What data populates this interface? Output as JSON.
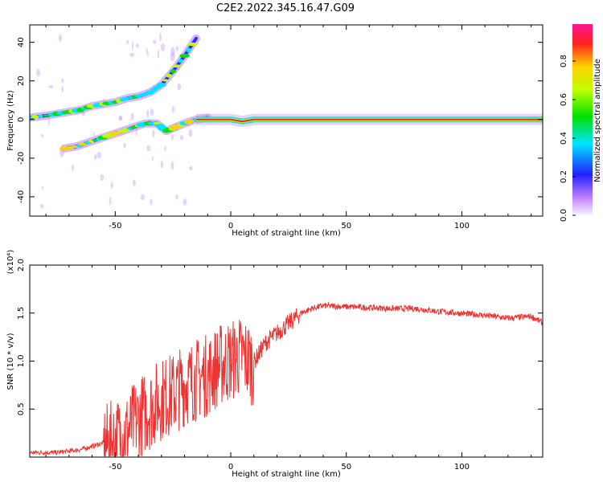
{
  "title": "C2E2.2022.345.16.47.G09",
  "chart_data": [
    {
      "type": "heatmap",
      "xlabel": "Height of straight line (km)",
      "ylabel": "Frequency (Hz)",
      "xlim": [
        -87,
        135
      ],
      "ylim": [
        -50,
        49
      ],
      "x_ticks": [
        -50,
        0,
        50,
        100
      ],
      "y_ticks": [
        -40,
        -20,
        0,
        20,
        40
      ],
      "colorbar": {
        "label": "Normalized spectral amplitude",
        "range": [
          0.0,
          1.0
        ],
        "ticks": [
          "0.0",
          "0.2",
          "0.4",
          "0.6",
          "0.8"
        ]
      },
      "colormap": [
        "#ffffff",
        "#8a2be2",
        "#2020ff",
        "#00e5ff",
        "#00e000",
        "#c0ff00",
        "#ffd000",
        "#ff2020",
        "#ff1493"
      ],
      "traces": [
        {
          "name": "upper-branch",
          "points": [
            [
              -87,
              1
            ],
            [
              -80,
              2
            ],
            [
              -75,
              3
            ],
            [
              -70,
              4
            ],
            [
              -65,
              5
            ],
            [
              -60,
              7
            ],
            [
              -55,
              8
            ],
            [
              -50,
              9
            ],
            [
              -45,
              11
            ],
            [
              -40,
              12
            ],
            [
              -35,
              14
            ],
            [
              -30,
              18
            ],
            [
              -25,
              25
            ],
            [
              -20,
              33
            ],
            [
              -15,
              42
            ]
          ]
        },
        {
          "name": "lower-branch",
          "points": [
            [
              -72,
              -15
            ],
            [
              -67,
              -14
            ],
            [
              -62,
              -12
            ],
            [
              -57,
              -10
            ],
            [
              -52,
              -8
            ],
            [
              -47,
              -6
            ],
            [
              -42,
              -4
            ],
            [
              -37,
              -2
            ],
            [
              -32,
              -2
            ],
            [
              -28,
              -6
            ],
            [
              -24,
              -4
            ],
            [
              -20,
              -2
            ],
            [
              -15,
              0
            ],
            [
              -10,
              1
            ]
          ]
        },
        {
          "name": "zero-line",
          "points": [
            [
              -15,
              0
            ],
            [
              0,
              0
            ],
            [
              5,
              -1
            ],
            [
              10,
              0
            ],
            [
              50,
              0
            ],
            [
              100,
              0
            ],
            [
              135,
              0
            ]
          ]
        }
      ]
    },
    {
      "type": "line",
      "xlabel": "Height of straight line (km)",
      "ylabel": "SNR (10 * v/v)",
      "y_multiplier": "(x10⁴)",
      "xlim": [
        -87,
        135
      ],
      "ylim": [
        0.0,
        2.0
      ],
      "x_ticks": [
        -50,
        0,
        50,
        100
      ],
      "y_ticks": [
        "0.5",
        "1.0",
        "1.5",
        "2.0"
      ],
      "color": "#ee3333",
      "series": [
        {
          "x": [
            -87,
            -75,
            -65,
            -55,
            -45,
            -40,
            -35,
            -30,
            -25,
            -20,
            -15,
            -10,
            -5,
            0,
            5,
            10,
            15,
            20,
            25,
            30,
            35,
            40,
            50,
            60,
            70,
            80,
            90,
            100,
            110,
            120,
            125,
            130,
            135
          ],
          "values": [
            0.05,
            0.05,
            0.08,
            0.15,
            0.3,
            0.45,
            0.55,
            0.65,
            0.7,
            0.8,
            0.85,
            0.9,
            1.0,
            1.05,
            1.1,
            1.0,
            1.2,
            1.3,
            1.4,
            1.5,
            1.55,
            1.58,
            1.57,
            1.56,
            1.55,
            1.55,
            1.52,
            1.5,
            1.48,
            1.45,
            1.46,
            1.47,
            1.4
          ]
        }
      ]
    }
  ]
}
